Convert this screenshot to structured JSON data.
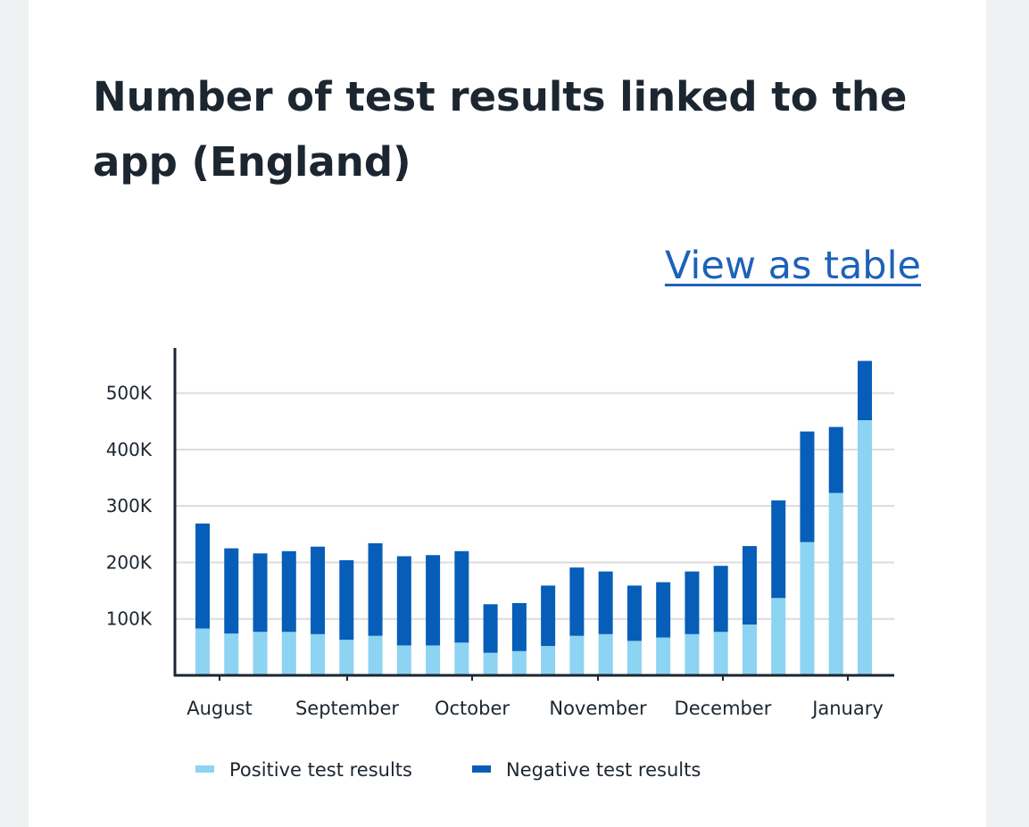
{
  "title": "Number of test results linked to the app (England)",
  "link": {
    "label": "View as table"
  },
  "colors": {
    "positive": "#8dd3f2",
    "negative": "#065eb8",
    "grid": "#dcdcdc",
    "axis": "#1c2630"
  },
  "chart_data": {
    "type": "bar",
    "stacked": true,
    "title": "Number of test results linked to the app (England)",
    "xlabel": "",
    "ylabel": "",
    "ylim": [
      0,
      580000
    ],
    "yticks": [
      100000,
      200000,
      300000,
      400000,
      500000
    ],
    "ytick_labels": [
      "100K",
      "200K",
      "300K",
      "400K",
      "500K"
    ],
    "xtick_labels": [
      "August",
      "September",
      "October",
      "November",
      "December",
      "January"
    ],
    "grid": true,
    "legend_position": "bottom",
    "series": [
      {
        "name": "Positive test results",
        "values": [
          83000,
          74000,
          77000,
          77000,
          73000,
          63000,
          70000,
          53000,
          53000,
          58000,
          40000,
          43000,
          52000,
          70000,
          73000,
          61000,
          67000,
          73000,
          77000,
          90000,
          137000,
          236000,
          323000,
          452000
        ]
      },
      {
        "name": "Negative test results",
        "values": [
          186000,
          151000,
          139000,
          143000,
          155000,
          141000,
          164000,
          158000,
          160000,
          162000,
          86000,
          85000,
          107000,
          121000,
          111000,
          98000,
          98000,
          111000,
          117000,
          139000,
          173000,
          196000,
          117000,
          105000
        ]
      }
    ]
  }
}
